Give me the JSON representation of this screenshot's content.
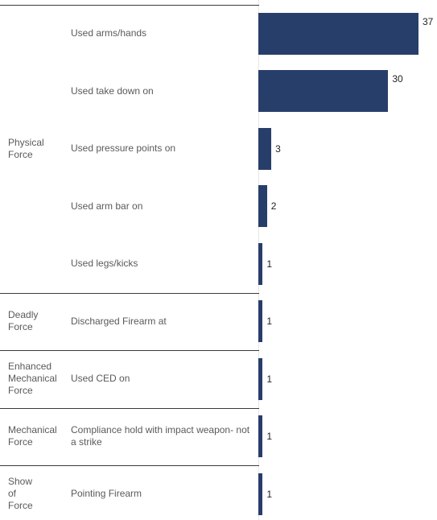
{
  "chart_data": {
    "type": "bar",
    "orientation": "horizontal",
    "bar_color": "#283e6a",
    "groups": [
      {
        "category": "Physical Force",
        "items": [
          {
            "label": "Used arms/hands",
            "value": 37
          },
          {
            "label": "Used take down on",
            "value": 30
          },
          {
            "label": "Used pressure points on",
            "value": 3
          },
          {
            "label": "Used arm bar on",
            "value": 2
          },
          {
            "label": "Used legs/kicks",
            "value": 1
          }
        ]
      },
      {
        "category": "Deadly Force",
        "items": [
          {
            "label": "Discharged Firearm at",
            "value": 1
          }
        ]
      },
      {
        "category": "Enhanced Mechanical Force",
        "items": [
          {
            "label": "Used CED on",
            "value": 1
          }
        ]
      },
      {
        "category": "Mechanical Force",
        "items": [
          {
            "label": "Compliance hold with impact weapon- not a strike",
            "value": 1
          }
        ]
      },
      {
        "category": "Show of Force",
        "items": [
          {
            "label": "Pointing Firearm",
            "value": 1
          }
        ]
      }
    ],
    "xlim": [
      0,
      37
    ]
  }
}
